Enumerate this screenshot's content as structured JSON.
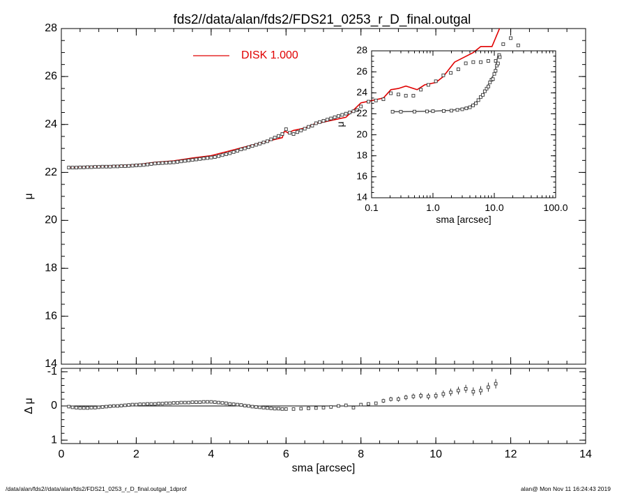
{
  "title": "fds2//data/alan/fds2/FDS21_0253_r_D_final.outgal",
  "footer_left": "/data/alan/fds2//data/alan/fds2/FDS21_0253_r_D_final.outgal_1dprof",
  "footer_right": "alan@  Mon Nov 11 16:24:43 2019",
  "legend_text": "DISK  1.000",
  "colors": {
    "model": "#e00000",
    "data": "#000000"
  },
  "chart_data": [
    {
      "id": "main",
      "type": "scatter",
      "xlabel": "",
      "ylabel": "μ",
      "xlim": [
        0,
        14
      ],
      "ylim": [
        28,
        14
      ],
      "xticks": [
        "0",
        "2",
        "4",
        "6",
        "8",
        "10",
        "12",
        "14"
      ],
      "yticks": [
        "14",
        "16",
        "18",
        "20",
        "22",
        "24",
        "26",
        "28"
      ],
      "legend": {
        "placement": "top-center",
        "entries": [
          "DISK  1.000"
        ]
      },
      "series": [
        {
          "name": "DISK  1.000",
          "style": "line",
          "x": [
            0.2,
            0.5,
            1.0,
            1.5,
            2.0,
            2.5,
            3.0,
            3.5,
            4.0,
            4.5,
            5.0,
            5.5,
            5.9,
            5.95,
            6.0,
            6.05,
            6.2,
            6.5,
            6.8,
            7.0,
            7.3,
            7.6,
            7.8,
            8.0,
            8.3,
            8.6,
            8.8,
            9.0,
            9.2,
            9.3,
            9.5,
            9.7,
            10.0,
            10.2,
            10.5,
            11.0,
            11.2,
            11.5,
            11.7
          ],
          "y": [
            22.2,
            22.22,
            22.25,
            22.28,
            22.32,
            22.42,
            22.48,
            22.6,
            22.7,
            22.9,
            23.1,
            23.3,
            23.45,
            23.7,
            23.7,
            23.65,
            23.75,
            23.85,
            24.05,
            24.1,
            24.2,
            24.3,
            24.6,
            24.9,
            25.0,
            25.1,
            25.45,
            25.5,
            25.6,
            25.55,
            25.45,
            25.65,
            25.75,
            26.0,
            26.6,
            27.0,
            27.25,
            27.25,
            28.0
          ]
        },
        {
          "name": "",
          "style": "points",
          "x": [
            0.2,
            0.3,
            0.4,
            0.5,
            0.6,
            0.7,
            0.8,
            0.9,
            1.0,
            1.1,
            1.2,
            1.3,
            1.4,
            1.5,
            1.6,
            1.7,
            1.8,
            1.9,
            2.0,
            2.1,
            2.2,
            2.3,
            2.4,
            2.5,
            2.6,
            2.7,
            2.8,
            2.9,
            3.0,
            3.1,
            3.2,
            3.3,
            3.4,
            3.5,
            3.6,
            3.7,
            3.8,
            3.9,
            4.0,
            4.1,
            4.2,
            4.3,
            4.4,
            4.5,
            4.6,
            4.7,
            4.8,
            4.9,
            5.0,
            5.1,
            5.2,
            5.3,
            5.4,
            5.5,
            5.6,
            5.7,
            5.8,
            5.9,
            6.0,
            6.1,
            6.2,
            6.3,
            6.4,
            6.5,
            6.6,
            6.7,
            6.8,
            6.9,
            7.0,
            7.1,
            7.2,
            7.3,
            7.4,
            7.5,
            7.6,
            7.7,
            7.8,
            7.9,
            8.0,
            8.2,
            8.4,
            8.6,
            8.8,
            9.0,
            9.2,
            9.4,
            9.6,
            9.8,
            10.0,
            10.2,
            10.4,
            10.6,
            10.8,
            11.0,
            11.2,
            11.4,
            11.6,
            11.8,
            12.0,
            12.2
          ],
          "y": [
            22.2,
            22.2,
            22.2,
            22.21,
            22.21,
            22.22,
            22.22,
            22.23,
            22.23,
            22.24,
            22.24,
            22.24,
            22.25,
            22.25,
            22.26,
            22.26,
            22.27,
            22.28,
            22.29,
            22.3,
            22.31,
            22.33,
            22.35,
            22.37,
            22.38,
            22.39,
            22.4,
            22.41,
            22.42,
            22.44,
            22.46,
            22.48,
            22.5,
            22.52,
            22.54,
            22.56,
            22.58,
            22.6,
            22.62,
            22.64,
            22.68,
            22.72,
            22.76,
            22.8,
            22.85,
            22.9,
            22.96,
            23.0,
            23.05,
            23.1,
            23.15,
            23.2,
            23.25,
            23.3,
            23.38,
            23.45,
            23.52,
            23.6,
            23.8,
            23.65,
            23.6,
            23.68,
            23.75,
            23.82,
            23.9,
            23.95,
            24.05,
            24.1,
            24.15,
            24.2,
            24.25,
            24.3,
            24.35,
            24.4,
            24.45,
            24.5,
            24.55,
            24.6,
            24.75,
            24.95,
            25.0,
            25.05,
            25.3,
            25.25,
            25.2,
            25.2,
            25.45,
            25.65,
            25.8,
            26.05,
            26.15,
            26.3,
            26.55,
            26.6,
            26.6,
            26.65,
            26.65,
            27.35,
            27.6,
            27.3
          ]
        }
      ]
    },
    {
      "id": "residual",
      "type": "scatter",
      "xlabel": "sma [arcsec]",
      "ylabel": "Δ μ",
      "xlim": [
        0,
        14
      ],
      "ylim": [
        -1.1,
        1.1
      ],
      "xticks": [
        "0",
        "2",
        "4",
        "6",
        "8",
        "10",
        "12",
        "14"
      ],
      "yticks": [
        "1",
        "0",
        "-1"
      ],
      "series": [
        {
          "name": "",
          "style": "points",
          "x": [
            0.2,
            0.3,
            0.4,
            0.5,
            0.6,
            0.7,
            0.8,
            0.9,
            1.0,
            1.1,
            1.2,
            1.3,
            1.4,
            1.5,
            1.6,
            1.7,
            1.8,
            1.9,
            2.0,
            2.1,
            2.2,
            2.3,
            2.4,
            2.5,
            2.6,
            2.7,
            2.8,
            2.9,
            3.0,
            3.1,
            3.2,
            3.3,
            3.4,
            3.5,
            3.6,
            3.7,
            3.8,
            3.9,
            4.0,
            4.1,
            4.2,
            4.3,
            4.4,
            4.5,
            4.6,
            4.7,
            4.8,
            4.9,
            5.0,
            5.1,
            5.2,
            5.3,
            5.4,
            5.5,
            5.6,
            5.7,
            5.8,
            5.9,
            6.0,
            6.2,
            6.4,
            6.6,
            6.8,
            7.0,
            7.2,
            7.4,
            7.6,
            7.8,
            8.0,
            8.2,
            8.4,
            8.6,
            8.8,
            9.0,
            9.2,
            9.4,
            9.6,
            9.8,
            10.0,
            10.2,
            10.4,
            10.6,
            10.8,
            11.0,
            11.2,
            11.4,
            11.6
          ],
          "y": [
            0.02,
            0.04,
            0.05,
            0.06,
            0.06,
            0.06,
            0.05,
            0.05,
            0.04,
            0.03,
            0.02,
            0.01,
            0.0,
            0.0,
            -0.01,
            -0.02,
            -0.03,
            -0.04,
            -0.04,
            -0.05,
            -0.05,
            -0.06,
            -0.06,
            -0.06,
            -0.07,
            -0.07,
            -0.08,
            -0.08,
            -0.09,
            -0.09,
            -0.1,
            -0.1,
            -0.1,
            -0.11,
            -0.11,
            -0.11,
            -0.12,
            -0.12,
            -0.12,
            -0.11,
            -0.1,
            -0.09,
            -0.08,
            -0.06,
            -0.05,
            -0.04,
            -0.03,
            -0.01,
            0.0,
            0.02,
            0.03,
            0.04,
            0.05,
            0.06,
            0.07,
            0.08,
            0.08,
            0.09,
            0.09,
            0.09,
            0.08,
            0.07,
            0.06,
            0.05,
            0.03,
            0.0,
            -0.02,
            0.05,
            -0.04,
            -0.06,
            -0.08,
            -0.15,
            -0.2,
            -0.2,
            -0.25,
            -0.28,
            -0.3,
            -0.28,
            -0.3,
            -0.35,
            -0.4,
            -0.45,
            -0.5,
            -0.42,
            -0.45,
            -0.55,
            -0.65
          ]
        }
      ]
    },
    {
      "id": "inset",
      "type": "scatter",
      "xlabel": "sma [arcsec]",
      "ylabel": "μ",
      "xscale": "log",
      "xlim": [
        0.1,
        100.0
      ],
      "ylim": [
        28,
        14
      ],
      "xticks": [
        "0.1",
        "1.0",
        "10.0",
        "100.0"
      ],
      "yticks": [
        "14",
        "16",
        "18",
        "20",
        "22",
        "24",
        "26",
        "28"
      ],
      "series": [
        {
          "name": "",
          "style": "line",
          "x": [
            0.22,
            0.3,
            0.5,
            0.8,
            1.0,
            1.5,
            2.0,
            2.5,
            3.0,
            3.5,
            4.0,
            4.5,
            5.0,
            5.5,
            6.0,
            6.5,
            7.0,
            7.5,
            8.0,
            8.5,
            9.0,
            9.5,
            10.0,
            10.5,
            11.0,
            11.5
          ],
          "y": [
            22.2,
            22.2,
            22.22,
            22.24,
            22.25,
            22.3,
            22.33,
            22.42,
            22.48,
            22.6,
            22.7,
            22.9,
            23.1,
            23.3,
            23.6,
            23.8,
            24.1,
            24.3,
            24.8,
            25.1,
            25.4,
            25.6,
            25.8,
            26.3,
            27.0,
            27.6
          ]
        },
        {
          "name": "",
          "style": "points",
          "x": [
            0.22,
            0.3,
            0.5,
            0.8,
            1.0,
            1.5,
            2.0,
            2.5,
            3.0,
            3.5,
            4.0,
            4.5,
            5.0,
            5.5,
            6.0,
            6.5,
            7.0,
            7.5,
            8.0,
            8.5,
            9.0,
            9.5,
            10.0,
            10.5,
            11.0,
            11.5,
            12.0,
            12.3
          ],
          "y": [
            22.2,
            22.2,
            22.21,
            22.23,
            22.25,
            22.27,
            22.3,
            22.37,
            22.43,
            22.52,
            22.62,
            22.8,
            23.0,
            23.3,
            23.6,
            23.8,
            24.15,
            24.4,
            24.6,
            25.0,
            25.25,
            25.3,
            25.8,
            26.1,
            26.6,
            26.8,
            27.6,
            27.4
          ]
        }
      ]
    }
  ]
}
